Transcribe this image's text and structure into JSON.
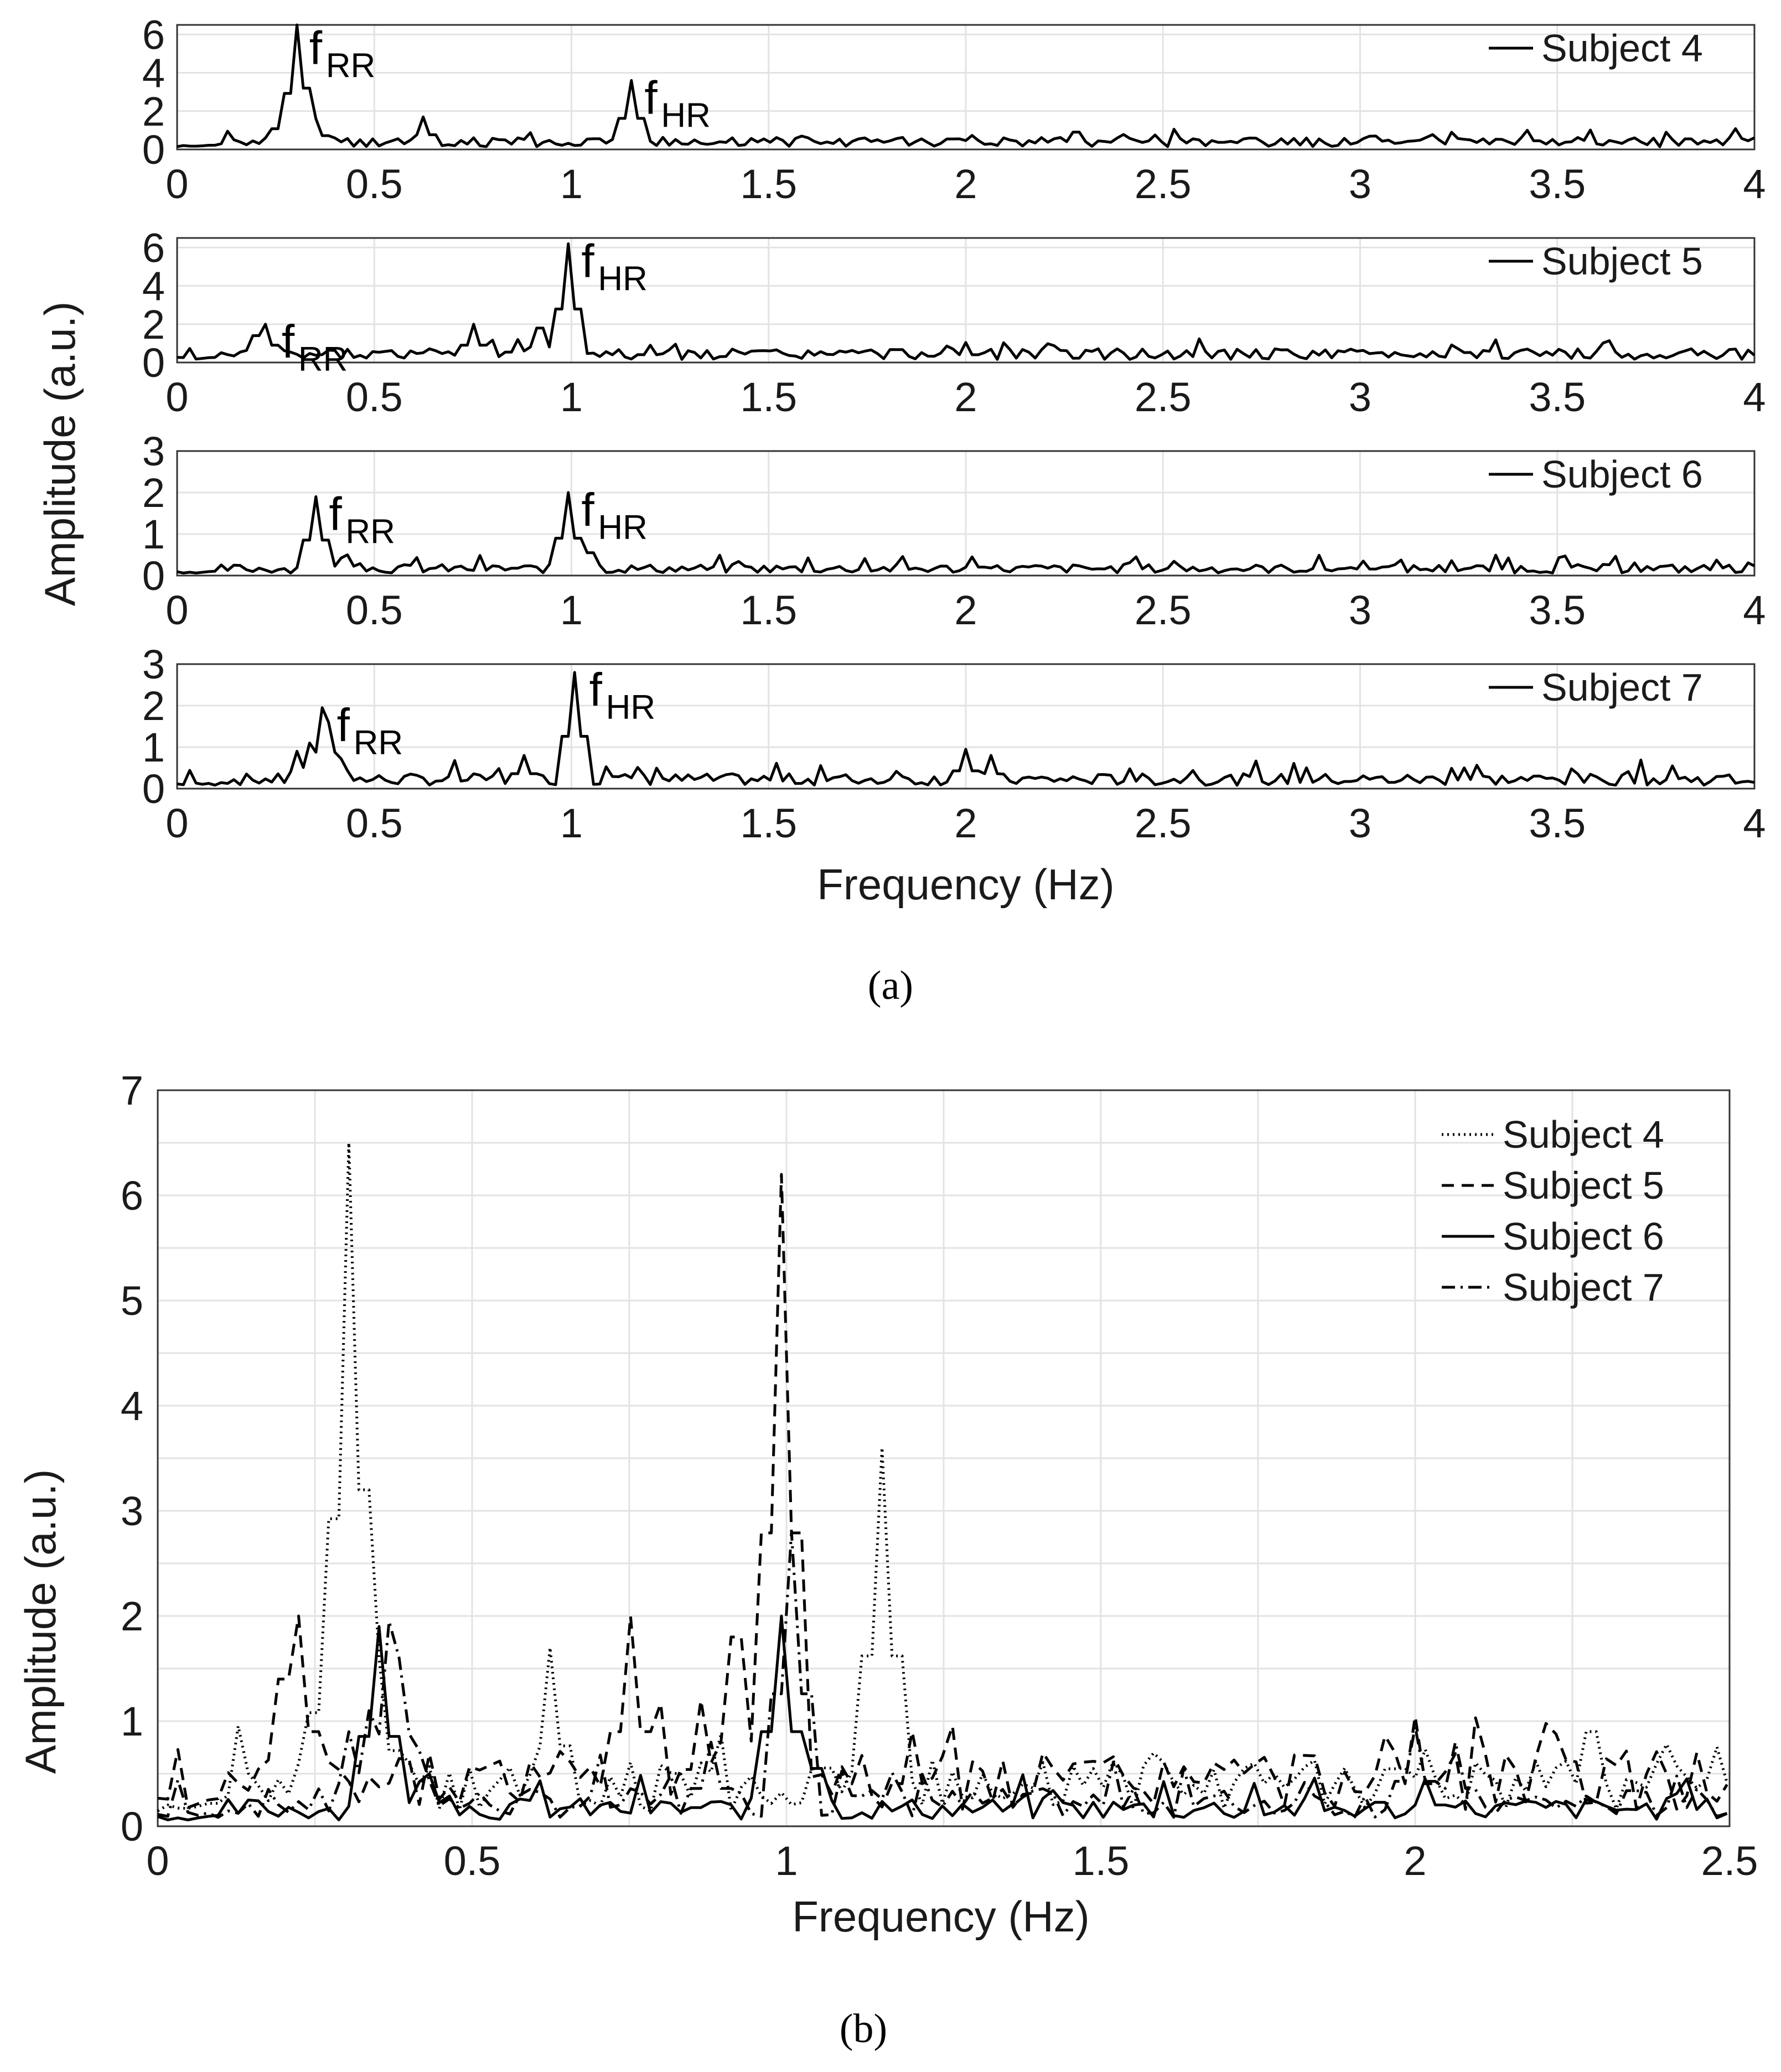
{
  "panel_a": {
    "caption": "(a)",
    "xlabel": "Frequency (Hz)",
    "ylabel": "Amplitude (a.u.)"
  },
  "panel_b": {
    "caption": "(b)",
    "xlabel": "Frequency (Hz)",
    "ylabel": "Amplitude (a.u.)"
  },
  "annotation_base": "f",
  "annotation_rr": "RR",
  "annotation_hr": "HR",
  "chart_data": [
    {
      "id": "a1",
      "type": "line",
      "subject": "Subject 4",
      "xlim": [
        0,
        4
      ],
      "ylim": [
        0,
        6.5
      ],
      "xticks": [
        "0",
        "0.5",
        "1",
        "1.5",
        "2",
        "2.5",
        "3",
        "3.5",
        "4"
      ],
      "yticks": [
        "0",
        "2",
        "4",
        "6"
      ],
      "annotations": [
        {
          "label": "RR",
          "x": 0.3,
          "y": 6.2
        },
        {
          "label": "HR",
          "x": 1.15,
          "y": 3.6
        }
      ],
      "peaks": [
        [
          0.27,
          2.4
        ],
        [
          0.3,
          6.5
        ],
        [
          0.33,
          3.2
        ],
        [
          0.35,
          1.6
        ],
        [
          0.63,
          1.7
        ],
        [
          1.15,
          3.6
        ],
        [
          2.28,
          0.9
        ],
        [
          3.43,
          1.0
        ]
      ],
      "seed": 4,
      "base": 0.35,
      "noise": 0.35
    },
    {
      "id": "a2",
      "type": "line",
      "subject": "Subject 5",
      "xlim": [
        0,
        4
      ],
      "ylim": [
        0,
        6.5
      ],
      "xticks": [
        "0",
        "0.5",
        "1",
        "1.5",
        "2",
        "2.5",
        "3",
        "3.5",
        "4"
      ],
      "yticks": [
        "0",
        "2",
        "4",
        "6"
      ],
      "annotations": [
        {
          "label": "RR",
          "x": 0.23,
          "y": 2.0
        },
        {
          "label": "HR",
          "x": 0.99,
          "y": 6.2
        }
      ],
      "peaks": [
        [
          0.2,
          1.4
        ],
        [
          0.23,
          2.0
        ],
        [
          0.75,
          2.0
        ],
        [
          0.86,
          1.2
        ],
        [
          0.92,
          1.8
        ],
        [
          0.99,
          6.2
        ],
        [
          1.2,
          0.9
        ],
        [
          2.0,
          0.9
        ]
      ],
      "seed": 5,
      "base": 0.4,
      "noise": 0.35
    },
    {
      "id": "a3",
      "type": "line",
      "subject": "Subject 6",
      "xlim": [
        0,
        4
      ],
      "ylim": [
        0,
        3
      ],
      "xticks": [
        "0",
        "0.5",
        "1",
        "1.5",
        "2",
        "2.5",
        "3",
        "3.5",
        "4"
      ],
      "yticks": [
        "0",
        "1",
        "2",
        "3"
      ],
      "annotations": [
        {
          "label": "RR",
          "x": 0.35,
          "y": 1.9
        },
        {
          "label": "HR",
          "x": 0.99,
          "y": 2.0
        }
      ],
      "peaks": [
        [
          0.35,
          1.9
        ],
        [
          0.43,
          0.5
        ],
        [
          0.99,
          2.0
        ],
        [
          1.05,
          0.55
        ],
        [
          2.02,
          0.45
        ],
        [
          3.01,
          0.35
        ]
      ],
      "seed": 6,
      "base": 0.15,
      "noise": 0.15
    },
    {
      "id": "a4",
      "type": "line",
      "subject": "Subject 7",
      "xlim": [
        0,
        4
      ],
      "ylim": [
        0,
        3
      ],
      "xticks": [
        "0",
        "0.5",
        "1",
        "1.5",
        "2",
        "2.5",
        "3",
        "3.5",
        "4"
      ],
      "yticks": [
        "0",
        "1",
        "2",
        "3"
      ],
      "annotations": [
        {
          "label": "RR",
          "x": 0.37,
          "y": 1.95
        },
        {
          "label": "HR",
          "x": 1.01,
          "y": 2.8
        }
      ],
      "peaks": [
        [
          0.31,
          0.9
        ],
        [
          0.34,
          1.1
        ],
        [
          0.37,
          1.95
        ],
        [
          0.39,
          1.6
        ],
        [
          0.88,
          0.8
        ],
        [
          1.01,
          2.8
        ],
        [
          2.0,
          0.95
        ],
        [
          2.06,
          0.8
        ]
      ],
      "seed": 7,
      "base": 0.2,
      "noise": 0.22
    },
    {
      "id": "b",
      "type": "line",
      "xlim": [
        0,
        2.5
      ],
      "ylim": [
        0,
        7
      ],
      "xticks": [
        "0",
        "0.5",
        "1",
        "1.5",
        "2",
        "2.5"
      ],
      "yticks": [
        "0",
        "1",
        "2",
        "3",
        "4",
        "5",
        "6",
        "7"
      ],
      "legend_position": "top-right",
      "series": [
        {
          "name": "Subject 4",
          "style": "dotted",
          "ref": "a1"
        },
        {
          "name": "Subject 5",
          "style": "dashed",
          "ref": "a2"
        },
        {
          "name": "Subject 6",
          "style": "solid",
          "ref": "a3"
        },
        {
          "name": "Subject 7",
          "style": "dashdot",
          "ref": "a4"
        }
      ]
    }
  ]
}
